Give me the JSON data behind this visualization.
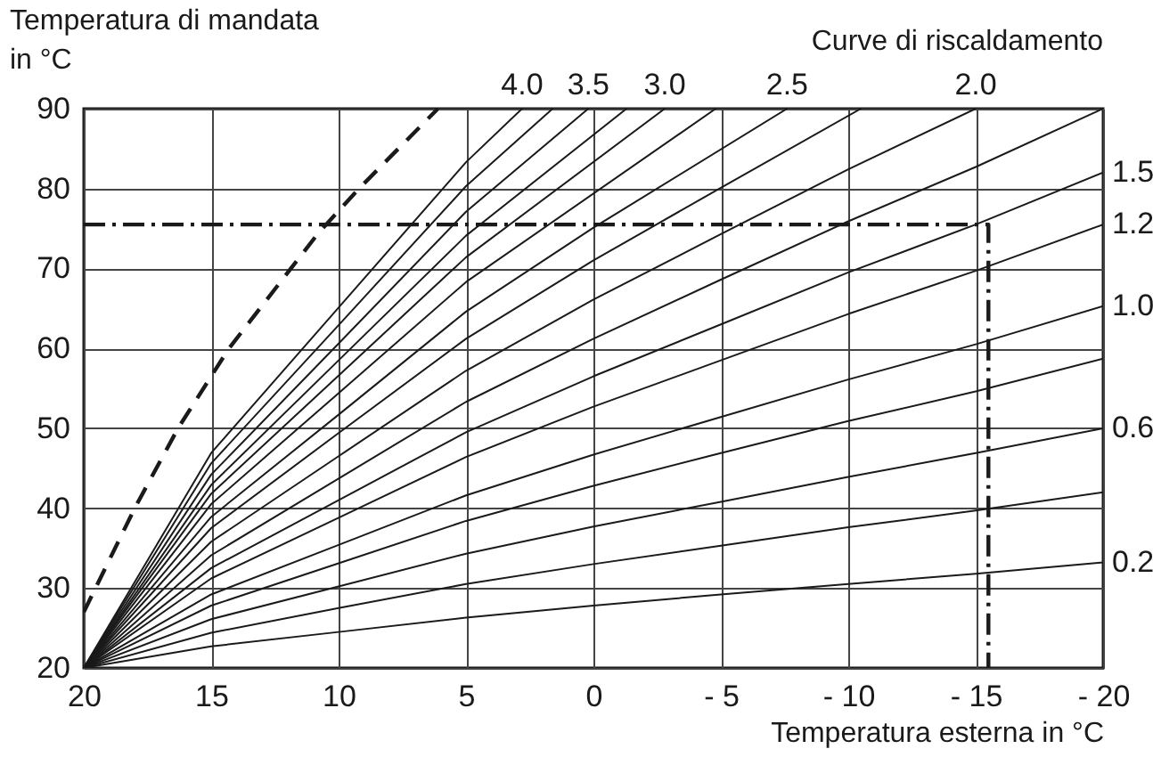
{
  "chart_data": {
    "type": "line",
    "xlabel": "Temperatura esterna in °C",
    "ylabel": "Temperatura di mandata in °C",
    "legend_title": "Curve di riscaldamento",
    "xlim": [
      20,
      -20
    ],
    "ylim": [
      20,
      90
    ],
    "xticks": [
      20,
      15,
      10,
      5,
      0,
      {
        "value": -5,
        "label": "- 5"
      },
      {
        "value": -10,
        "label": "- 10"
      },
      {
        "value": -15,
        "label": "- 15"
      },
      {
        "value": -20,
        "label": "- 20"
      }
    ],
    "yticks": [
      20,
      30,
      40,
      50,
      60,
      70,
      80,
      90
    ],
    "grid": true,
    "series": [
      {
        "name": "0.2",
        "color": "#1a1a1a",
        "x": [
          20,
          15,
          10,
          5,
          0,
          -5,
          -10,
          -15,
          -20
        ],
        "values": [
          20,
          22.7,
          24.5,
          26.3,
          27.8,
          29.2,
          30.5,
          31.8,
          33.2
        ]
      },
      {
        "color": "#1a1a1a",
        "x": [
          20,
          15,
          10,
          5,
          0,
          -5,
          -10,
          -15,
          -20
        ],
        "values": [
          20,
          24.4,
          27.5,
          30.5,
          33,
          35.3,
          37.6,
          39.7,
          42
        ]
      },
      {
        "name": "0.6",
        "color": "#1a1a1a",
        "x": [
          20,
          15,
          10,
          5,
          0,
          -5,
          -10,
          -15,
          -20
        ],
        "values": [
          20,
          26.1,
          30.2,
          34.3,
          37.7,
          40.8,
          43.9,
          46.9,
          50
        ]
      },
      {
        "color": "#1a1a1a",
        "x": [
          20,
          15,
          10,
          5,
          0,
          -5,
          -10,
          -15,
          -20
        ],
        "values": [
          20,
          27.8,
          33.1,
          38.4,
          42.8,
          46.9,
          50.9,
          54.6,
          58.7
        ]
      },
      {
        "name": "1.0",
        "color": "#1a1a1a",
        "x": [
          20,
          15,
          10,
          5,
          0,
          -5,
          -10,
          -15,
          -20
        ],
        "values": [
          20,
          29.2,
          35.4,
          41.6,
          46.7,
          51.4,
          56.1,
          60.5,
          65.3
        ]
      },
      {
        "name": "1.2",
        "color": "#1a1a1a",
        "x": [
          20,
          15,
          10,
          5,
          0,
          -5,
          -10,
          -15,
          -20
        ],
        "values": [
          20,
          31.2,
          38.8,
          46.4,
          52.7,
          58.5,
          64.3,
          69.7,
          75.5
        ]
      },
      {
        "name": "1.5",
        "color": "#1a1a1a",
        "x": [
          20,
          15,
          10,
          5,
          0,
          -5,
          -10,
          -15,
          -20
        ],
        "values": [
          20,
          32.5,
          41,
          49.5,
          56.5,
          63,
          69.5,
          75.5,
          82
        ]
      },
      {
        "color": "#1a1a1a",
        "x": [
          20,
          15,
          10,
          5,
          0,
          -5,
          -10,
          -15,
          -20
        ],
        "values": [
          20,
          34.1,
          43.7,
          53.3,
          61.2,
          68.6,
          75.9,
          82.7,
          90
        ]
      },
      {
        "name": "2.0",
        "color": "#1a1a1a",
        "x": [
          20,
          15,
          10,
          5,
          0,
          -5,
          -10,
          -15
        ],
        "values": [
          20,
          35.8,
          46.5,
          57.2,
          66.1,
          74.3,
          82.4,
          90
        ]
      },
      {
        "color": "#1a1a1a",
        "x": [
          20,
          15,
          10,
          5,
          0,
          -5,
          -10.5
        ],
        "values": [
          20,
          37.5,
          49.4,
          61.2,
          71,
          80.1,
          90
        ]
      },
      {
        "name": "2.5",
        "color": "#1a1a1a",
        "x": [
          20,
          15,
          10,
          5,
          0,
          -7.6
        ],
        "values": [
          20,
          38.9,
          51.7,
          64.6,
          75.1,
          90
        ]
      },
      {
        "color": "#1a1a1a",
        "x": [
          20,
          15,
          10,
          5,
          -4.8
        ],
        "values": [
          20,
          40.5,
          54.4,
          68.3,
          90
        ]
      },
      {
        "name": "3.0",
        "color": "#1a1a1a",
        "x": [
          20,
          15,
          10,
          5,
          -2.8
        ],
        "values": [
          20,
          41.8,
          56.6,
          71.4,
          90
        ]
      },
      {
        "color": "#1a1a1a",
        "x": [
          20,
          15,
          10,
          5,
          -1.3
        ],
        "values": [
          20,
          42.9,
          58.5,
          74.1,
          90
        ]
      },
      {
        "name": "3.5",
        "color": "#1a1a1a",
        "x": [
          20,
          15,
          10,
          5,
          0.2
        ],
        "values": [
          20,
          44.2,
          60.6,
          77.1,
          90
        ]
      },
      {
        "color": "#1a1a1a",
        "x": [
          20,
          15,
          10,
          5,
          1.6
        ],
        "values": [
          20,
          45.6,
          62.9,
          80.3,
          90
        ]
      },
      {
        "name": "4.0",
        "color": "#1a1a1a",
        "x": [
          20,
          15,
          10,
          5,
          2.8
        ],
        "values": [
          20,
          46.9,
          65.1,
          83.3,
          90
        ]
      },
      {
        "color": "#1a1a1a",
        "line_style": "dashed",
        "x": [
          20,
          18,
          16.3,
          14.3,
          10.8,
          9.2,
          6.1
        ],
        "values": [
          27,
          40,
          50,
          60,
          74.4,
          80,
          90
        ]
      },
      {
        "color": "#1a1a1a",
        "line_style": "dashdot",
        "x": [
          20,
          -15.5,
          -15.5
        ],
        "values": [
          75.5,
          75.5,
          20
        ]
      }
    ]
  }
}
